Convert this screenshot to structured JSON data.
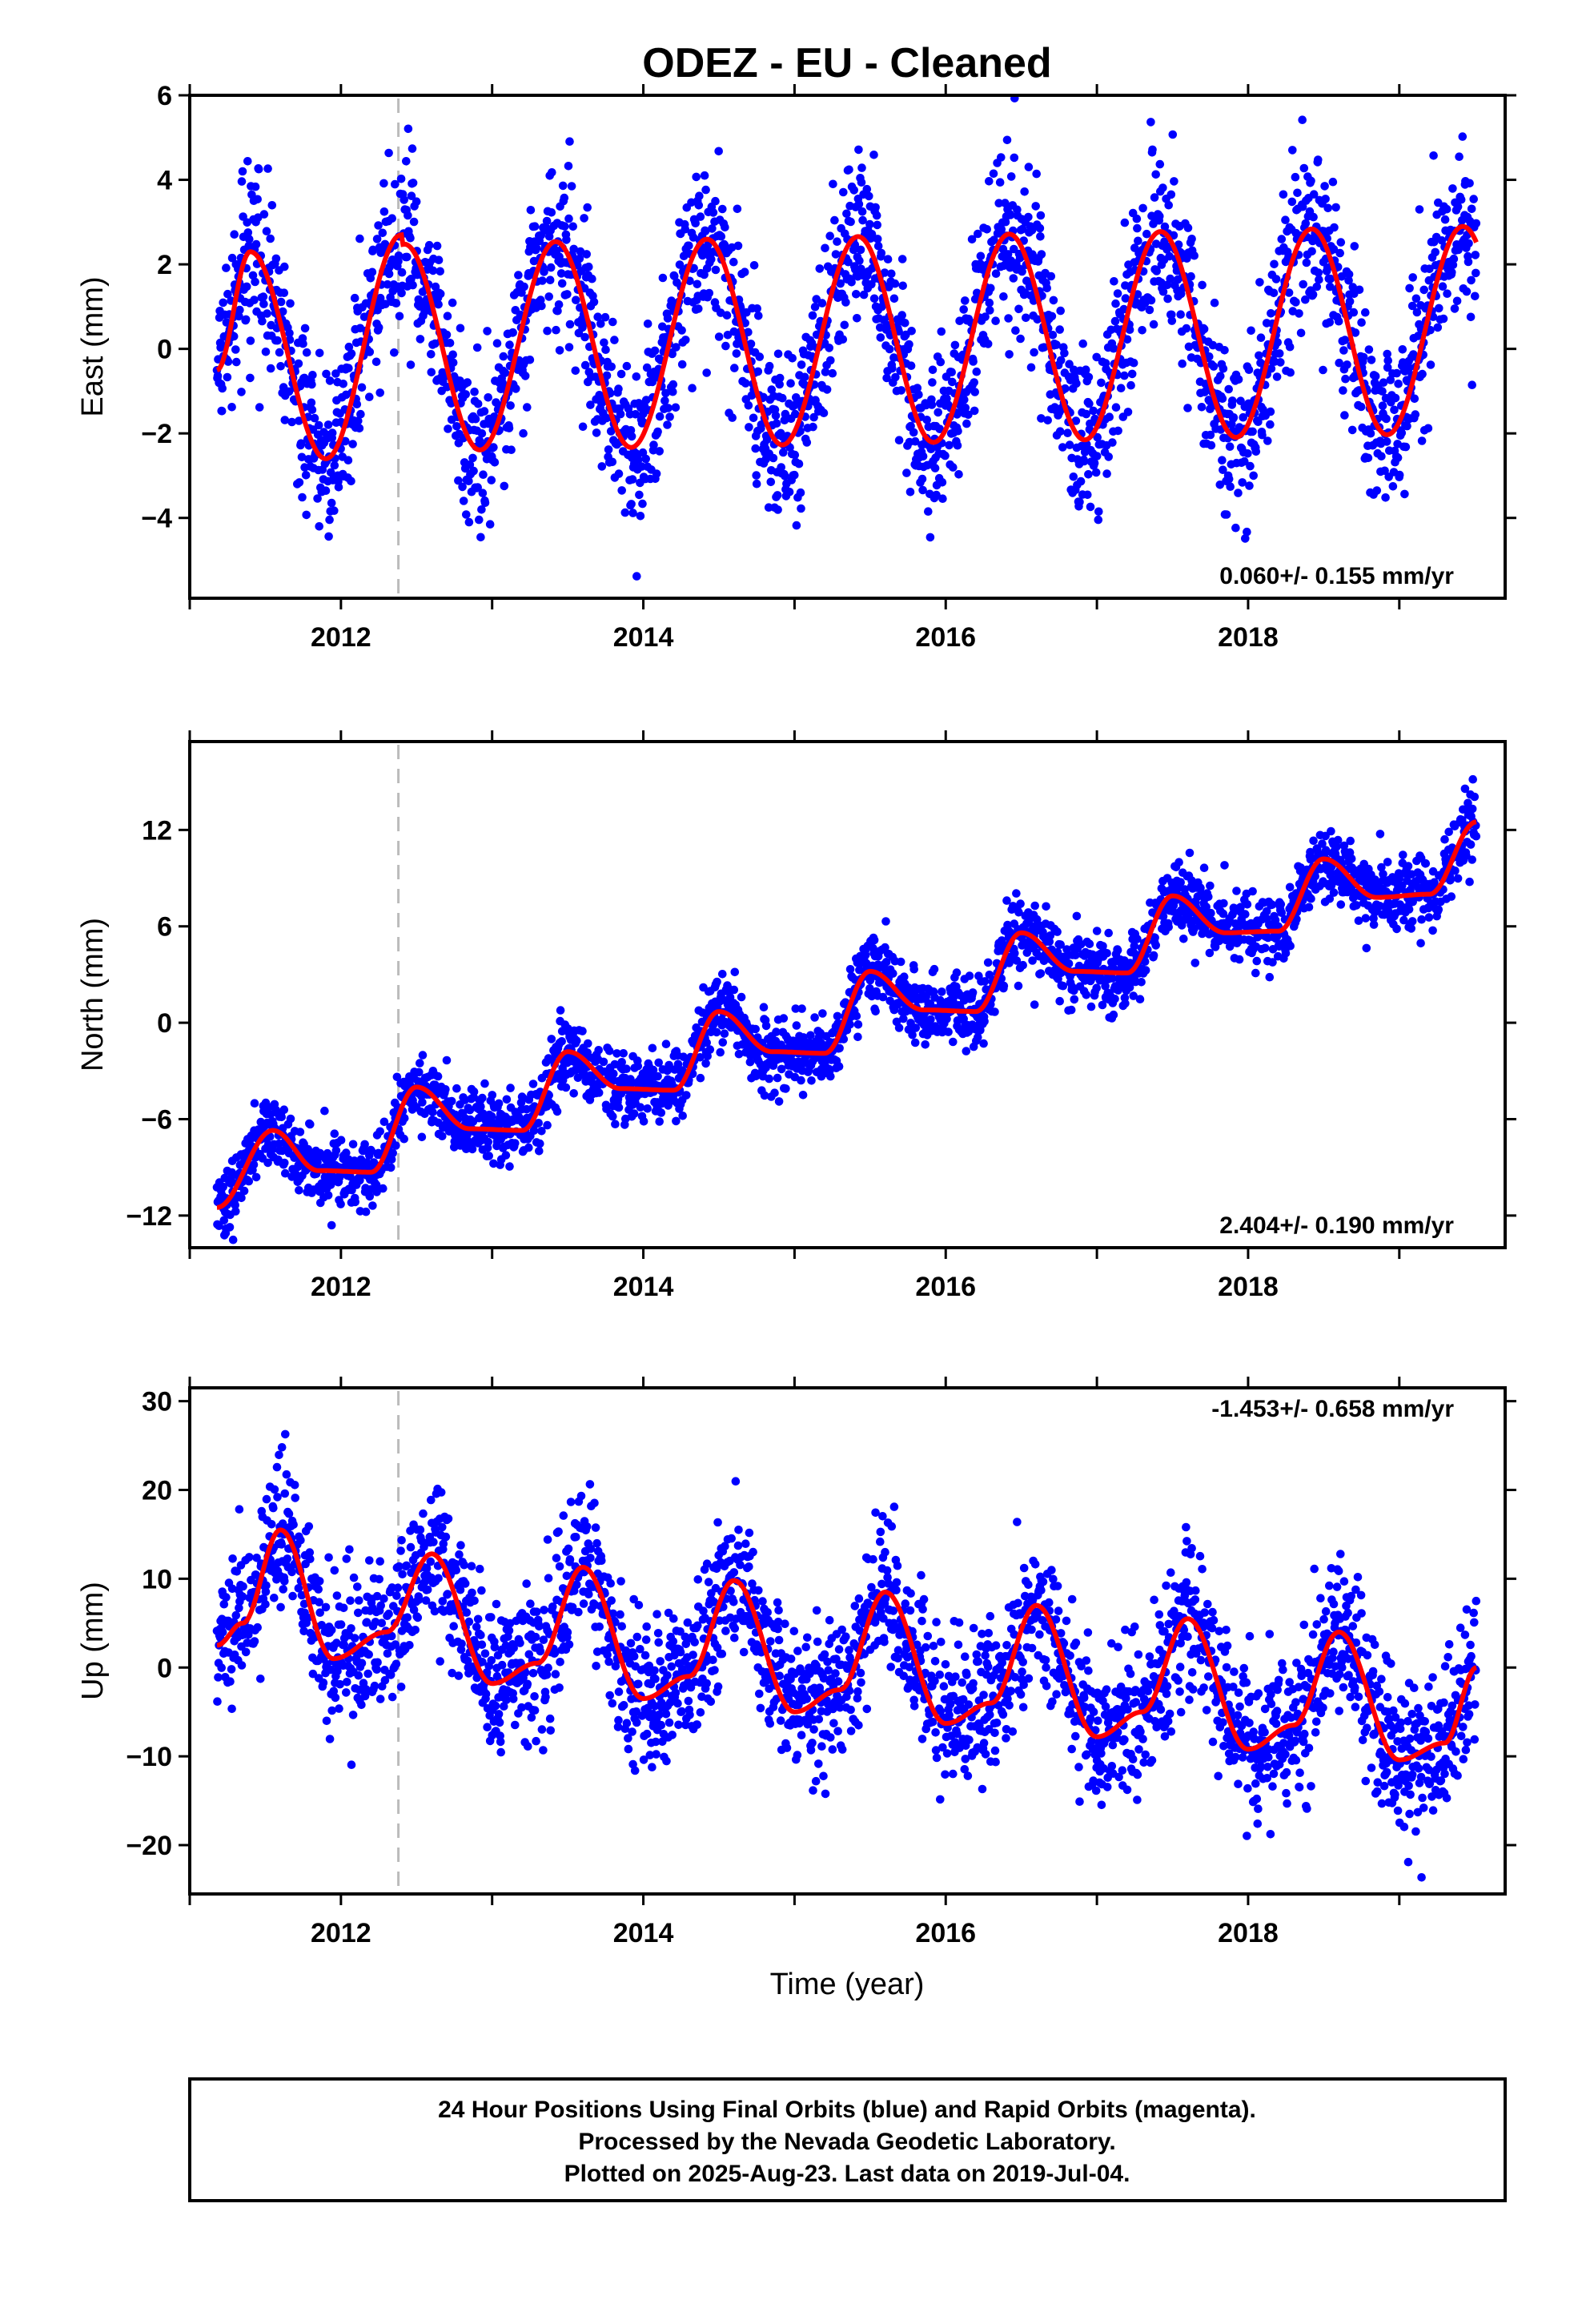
{
  "title": "ODEZ  - EU - Cleaned",
  "colors": {
    "final": "#0000ff",
    "model": "#ff0000",
    "offset": "#bbbbbb",
    "frame": "#000000"
  },
  "footer": [
    "24 Hour Positions Using Final Orbits (blue) and Rapid Orbits (magenta).",
    "Processed by the Nevada Geodetic Laboratory.",
    "Plotted on 2025-Aug-23. Last data on 2019-Jul-04."
  ],
  "chart_data": [
    {
      "type": "scatter",
      "ylabel": "East (mm)",
      "rate": "0.060+/- 0.155 mm/yr",
      "xlim": [
        2011.0,
        2019.7
      ],
      "ylim": [
        -5.9,
        6.0
      ],
      "xticks": [
        2012,
        2014,
        2016,
        2018
      ],
      "yticks": [
        -4,
        -2,
        0,
        2,
        4,
        6
      ],
      "ytick_labels": [
        "−4",
        "−2",
        "0",
        "2",
        "4",
        "6"
      ],
      "x_start": 2011.18,
      "x_end": 2019.51,
      "offset_epoch": 2012.38,
      "model": {
        "amplitude": 2.45,
        "peak_phase": 0.42,
        "trend": 0.06,
        "ref_year": 2015.3,
        "bias": 0.2,
        "early": [
          [
            2011.18,
            -0.5
          ],
          [
            2011.4,
            2.3
          ],
          [
            2011.9,
            -2.6
          ],
          [
            2012.4,
            2.7
          ]
        ]
      },
      "scatter_sigma": 1.0,
      "marker": "circle"
    },
    {
      "type": "scatter",
      "ylabel": "North (mm)",
      "rate": "2.404+/- 0.190 mm/yr",
      "xlim": [
        2011.0,
        2019.7
      ],
      "ylim": [
        -14.0,
        17.5
      ],
      "xticks": [
        2012,
        2014,
        2016,
        2018
      ],
      "yticks": [
        -12,
        -6,
        0,
        6,
        12
      ],
      "ytick_labels": [
        "−12",
        "−6",
        "0",
        "6",
        "12"
      ],
      "x_start": 2011.18,
      "x_end": 2019.51,
      "offset_epoch": 2012.38,
      "model": {
        "steps": [
          [
            2011.18,
            -11.5
          ],
          [
            2011.55,
            -6.7
          ],
          [
            2011.85,
            -9.2
          ],
          [
            2012.2,
            -9.3
          ],
          [
            2012.5,
            -4.0
          ],
          [
            2012.85,
            -6.6
          ],
          [
            2013.2,
            -6.7
          ],
          [
            2013.5,
            -1.8
          ],
          [
            2013.85,
            -4.1
          ],
          [
            2014.2,
            -4.2
          ],
          [
            2014.5,
            0.7
          ],
          [
            2014.85,
            -1.8
          ],
          [
            2015.2,
            -1.9
          ],
          [
            2015.5,
            3.2
          ],
          [
            2015.85,
            0.8
          ],
          [
            2016.2,
            0.7
          ],
          [
            2016.5,
            5.6
          ],
          [
            2016.85,
            3.2
          ],
          [
            2017.2,
            3.1
          ],
          [
            2017.5,
            7.9
          ],
          [
            2017.85,
            5.6
          ],
          [
            2018.2,
            5.7
          ],
          [
            2018.5,
            10.2
          ],
          [
            2018.85,
            7.8
          ],
          [
            2019.2,
            8.0
          ],
          [
            2019.51,
            12.5
          ]
        ]
      },
      "scatter_sigma": 1.1,
      "marker": "circle"
    },
    {
      "type": "scatter",
      "ylabel": "Up (mm)",
      "rate": "-1.453+/- 0.658 mm/yr",
      "xlim": [
        2011.0,
        2019.7
      ],
      "ylim": [
        -25.5,
        31.5
      ],
      "xticks": [
        2012,
        2014,
        2016,
        2018
      ],
      "yticks": [
        -20,
        -10,
        0,
        10,
        20,
        30
      ],
      "ytick_labels": [
        "−20",
        "−10",
        "0",
        "10",
        "20",
        "30"
      ],
      "x_start": 2011.18,
      "x_end": 2019.51,
      "offset_epoch": 2012.38,
      "model": {
        "steps": [
          [
            2011.18,
            2.5
          ],
          [
            2011.35,
            5.0
          ],
          [
            2011.6,
            15.5
          ],
          [
            2011.95,
            1.0
          ],
          [
            2012.3,
            4.0
          ],
          [
            2012.6,
            12.8
          ],
          [
            2013.0,
            -1.8
          ],
          [
            2013.3,
            0.5
          ],
          [
            2013.6,
            11.3
          ],
          [
            2014.0,
            -3.5
          ],
          [
            2014.3,
            -1.0
          ],
          [
            2014.6,
            9.8
          ],
          [
            2015.0,
            -5.0
          ],
          [
            2015.3,
            -2.5
          ],
          [
            2015.6,
            8.5
          ],
          [
            2016.0,
            -6.3
          ],
          [
            2016.3,
            -4.0
          ],
          [
            2016.6,
            7.0
          ],
          [
            2017.0,
            -7.8
          ],
          [
            2017.3,
            -5.0
          ],
          [
            2017.6,
            5.5
          ],
          [
            2018.0,
            -9.2
          ],
          [
            2018.3,
            -6.5
          ],
          [
            2018.6,
            4.0
          ],
          [
            2019.0,
            -10.4
          ],
          [
            2019.3,
            -8.5
          ],
          [
            2019.51,
            0.0
          ]
        ]
      },
      "scatter_sigma": 4.2,
      "marker": "circle"
    }
  ],
  "xlabel": "Time (year)"
}
